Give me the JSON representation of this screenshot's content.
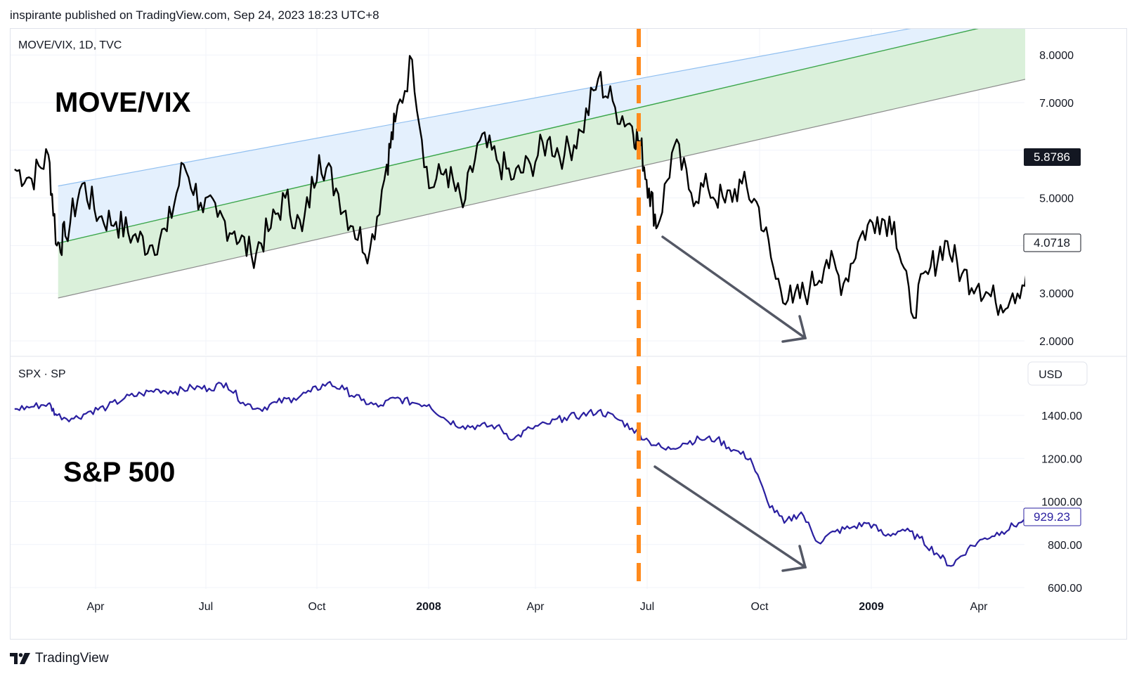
{
  "header": {
    "published": "inspirante published on TradingView.com, Sep 24, 2023 18:23 UTC+8"
  },
  "footer": {
    "brand": "TradingView",
    "logo": "tradingview-logo-icon"
  },
  "colors": {
    "movevix_line": "#000000",
    "spx_line": "#2a1fa0",
    "upper_channel": "#90bff0",
    "mid_channel": "#3aa54a",
    "lower_channel": "#8c8c8c",
    "upper_fill": "#e4f0fd",
    "lower_fill": "#daf0da",
    "divider": "#ff8a1c",
    "arrow": "#545865",
    "grid": "#f0f3fa"
  },
  "chart_data": [
    {
      "type": "line",
      "panel_title": "MOVE/VIX, 1D, TVC",
      "annotation": "MOVE/VIX",
      "y_axis_ticks": [
        "8.0000",
        "7.0000",
        "5.0000",
        "3.0000",
        "2.0000"
      ],
      "ylim": [
        2.0,
        8.5
      ],
      "last_value": "5.8786",
      "current_value": "4.0718",
      "x_axis_ticks": [
        {
          "label": "Apr",
          "bold": false
        },
        {
          "label": "Jul",
          "bold": false
        },
        {
          "label": "Oct",
          "bold": false
        },
        {
          "label": "2008",
          "bold": true
        },
        {
          "label": "Apr",
          "bold": false
        },
        {
          "label": "Jul",
          "bold": false
        },
        {
          "label": "Oct",
          "bold": false
        },
        {
          "label": "2009",
          "bold": true
        },
        {
          "label": "Apr",
          "bold": false
        }
      ],
      "channel": {
        "start": "2007-03-01",
        "end": "2009-05-20",
        "upper": [
          5.25,
          9.05
        ],
        "middle": [
          4.05,
          8.85
        ],
        "lower": [
          2.9,
          7.55
        ]
      },
      "series": [
        {
          "x": [
            "2007-01-24",
            "2007-02-07",
            "2007-02-21",
            "2007-02-28",
            "2007-03-07",
            "2007-03-21",
            "2007-04-04",
            "2007-04-18",
            "2007-05-02",
            "2007-05-16",
            "2007-05-30",
            "2007-06-13",
            "2007-06-27",
            "2007-07-11",
            "2007-07-25",
            "2007-08-08",
            "2007-08-22",
            "2007-09-05",
            "2007-09-19",
            "2007-10-03",
            "2007-10-17",
            "2007-10-31",
            "2007-11-14",
            "2007-11-28",
            "2007-12-05",
            "2007-12-19",
            "2008-01-02",
            "2008-01-16",
            "2008-01-30",
            "2008-02-13",
            "2008-02-27",
            "2008-03-12",
            "2008-03-26",
            "2008-04-09",
            "2008-04-23",
            "2008-05-07",
            "2008-05-21",
            "2008-06-04",
            "2008-06-18",
            "2008-06-25",
            "2008-07-02",
            "2008-07-09",
            "2008-07-23",
            "2008-08-06",
            "2008-08-20",
            "2008-09-03",
            "2008-09-17",
            "2008-10-01",
            "2008-10-15",
            "2008-10-29",
            "2008-11-12",
            "2008-11-26",
            "2008-12-10",
            "2008-12-24",
            "2009-01-07",
            "2009-01-21",
            "2009-02-04",
            "2009-02-18",
            "2009-03-04",
            "2009-03-18",
            "2009-04-01",
            "2009-04-15",
            "2009-04-29",
            "2009-05-13",
            "2009-05-20"
          ],
          "y": [
            5.6,
            5.4,
            5.9,
            4.0,
            4.2,
            5.3,
            4.6,
            4.5,
            4.2,
            4.0,
            4.3,
            5.7,
            4.9,
            4.6,
            4.3,
            3.8,
            4.3,
            5.0,
            4.3,
            5.9,
            5.2,
            4.4,
            3.9,
            5.7,
            6.6,
            7.9,
            5.2,
            5.6,
            4.8,
            6.2,
            5.8,
            5.4,
            5.7,
            6.2,
            5.9,
            6.4,
            7.5,
            6.9,
            6.5,
            6.1,
            5.2,
            4.4,
            6.1,
            5.1,
            5.2,
            4.9,
            5.3,
            4.8,
            3.3,
            2.8,
            3.1,
            3.7,
            3.2,
            4.2,
            4.6,
            4.5,
            2.6,
            3.4,
            4.1,
            3.4,
            3.2,
            2.8,
            3.0,
            3.4,
            4.07
          ]
        }
      ]
    },
    {
      "type": "line",
      "panel_title": "SPX · SP",
      "annotation": "S&P 500",
      "currency": "USD",
      "y_axis_ticks": [
        "1400.00",
        "1200.00",
        "1000.00",
        "800.00",
        "600.00"
      ],
      "ylim": [
        600,
        1560
      ],
      "current_value": "929.23",
      "series": [
        {
          "x": [
            "2007-01-24",
            "2007-02-07",
            "2007-02-21",
            "2007-02-28",
            "2007-03-14",
            "2007-03-28",
            "2007-04-11",
            "2007-04-25",
            "2007-05-09",
            "2007-05-23",
            "2007-06-06",
            "2007-06-20",
            "2007-07-04",
            "2007-07-18",
            "2007-08-01",
            "2007-08-15",
            "2007-08-29",
            "2007-09-12",
            "2007-09-26",
            "2007-10-10",
            "2007-10-24",
            "2007-11-07",
            "2007-11-21",
            "2007-12-05",
            "2007-12-19",
            "2008-01-02",
            "2008-01-16",
            "2008-01-30",
            "2008-02-13",
            "2008-02-27",
            "2008-03-12",
            "2008-03-26",
            "2008-04-09",
            "2008-04-23",
            "2008-05-07",
            "2008-05-21",
            "2008-06-04",
            "2008-06-18",
            "2008-07-02",
            "2008-07-16",
            "2008-07-30",
            "2008-08-13",
            "2008-08-27",
            "2008-09-10",
            "2008-09-24",
            "2008-10-08",
            "2008-10-22",
            "2008-11-05",
            "2008-11-19",
            "2008-12-03",
            "2008-12-17",
            "2008-12-31",
            "2009-01-14",
            "2009-01-28",
            "2009-02-11",
            "2009-02-25",
            "2009-03-09",
            "2009-03-23",
            "2009-04-06",
            "2009-04-20",
            "2009-05-04",
            "2009-05-20"
          ],
          "y": [
            1430,
            1440,
            1455,
            1400,
            1385,
            1420,
            1440,
            1480,
            1500,
            1520,
            1510,
            1530,
            1525,
            1550,
            1460,
            1430,
            1460,
            1480,
            1510,
            1550,
            1520,
            1470,
            1440,
            1480,
            1460,
            1450,
            1380,
            1350,
            1350,
            1350,
            1290,
            1340,
            1360,
            1390,
            1400,
            1420,
            1390,
            1340,
            1280,
            1240,
            1270,
            1290,
            1290,
            1240,
            1200,
            1000,
            900,
            950,
            810,
            860,
            880,
            900,
            840,
            870,
            830,
            760,
            700,
            780,
            830,
            860,
            900,
            929.23
          ]
        }
      ]
    }
  ]
}
